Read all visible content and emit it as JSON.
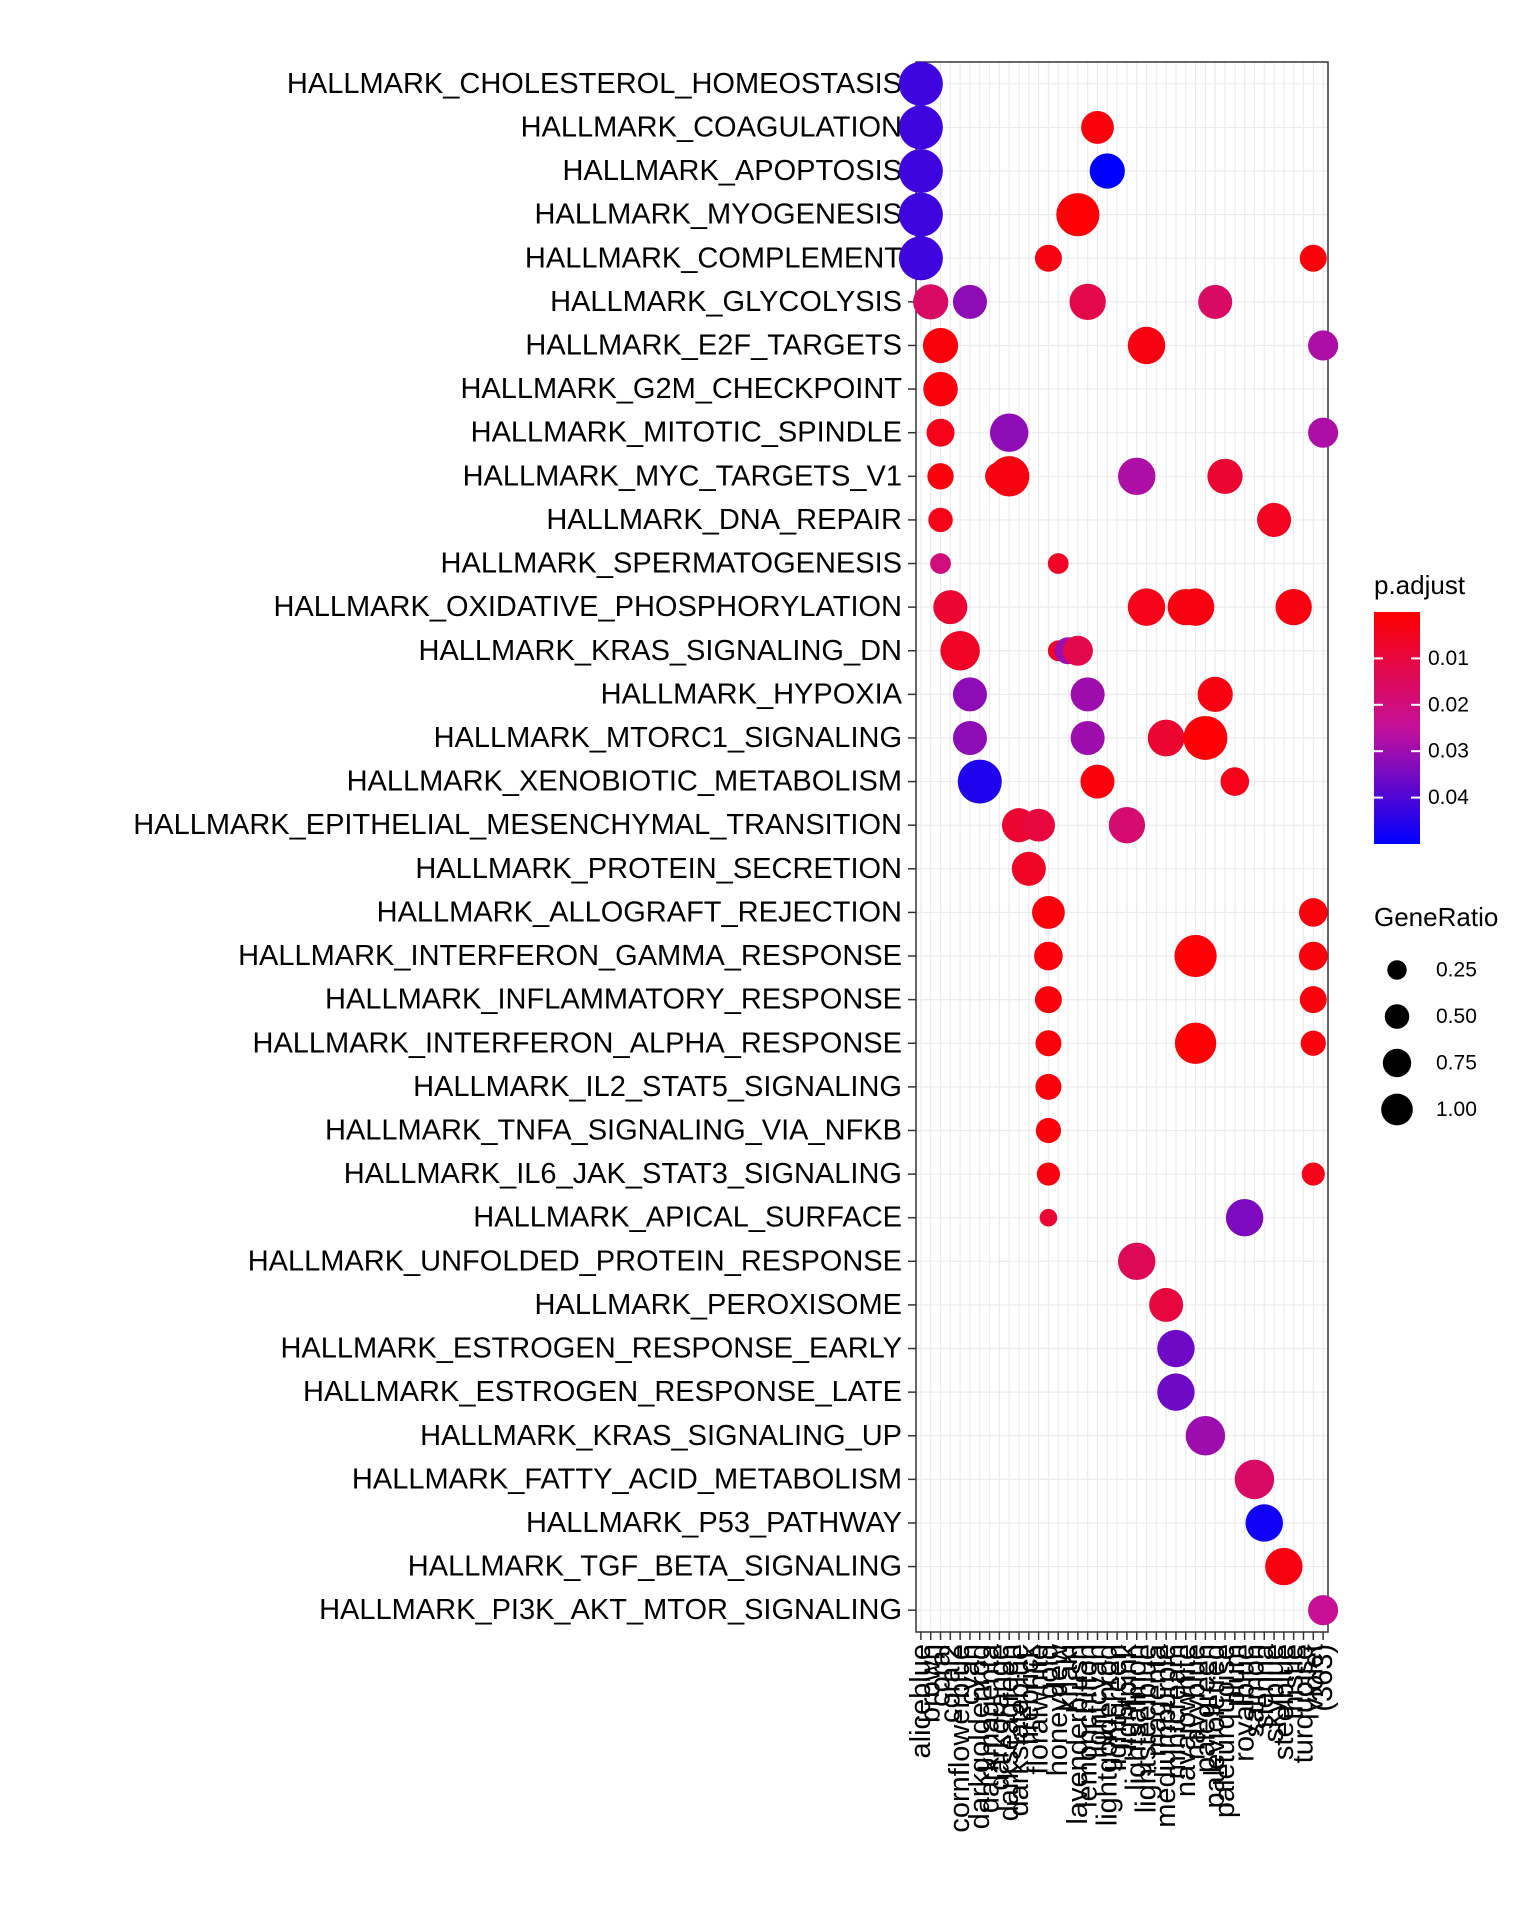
{
  "chart_data": {
    "type": "scatter",
    "title": "",
    "xlabel": "",
    "ylabel": "",
    "grid": true,
    "legend_position": "right",
    "categories_x": [
      "aliceblue",
      "brown",
      "coral",
      "coral2",
      "cornflowerblue",
      "cyan",
      "darkgoldenrod",
      "darkmagenta",
      "darkorange",
      "darkseagreen",
      "darkslateblue",
      "firebrick",
      "floralwhite",
      "gold",
      "honeydew",
      "khaki",
      "lavenderblush",
      "lemonchiffon",
      "lightcyan",
      "lightgoldenrod",
      "lightgreen",
      "lightpink",
      "lightsalmon",
      "lightsteelblue",
      "magenta",
      "mediumpurple",
      "mintcream",
      "navajowhite",
      "navyblue",
      "palegreen",
      "palevioletred",
      "paleturquoise",
      "plum",
      "royalblue",
      "salmon",
      "sienna",
      "skyblue",
      "steelblue",
      "thistle",
      "turquoise",
      "violet",
      "(363)"
    ],
    "categories_y": [
      "HALLMARK_CHOLESTEROL_HOMEOSTASIS",
      "HALLMARK_COAGULATION",
      "HALLMARK_APOPTOSIS",
      "HALLMARK_MYOGENESIS",
      "HALLMARK_COMPLEMENT",
      "HALLMARK_GLYCOLYSIS",
      "HALLMARK_E2F_TARGETS",
      "HALLMARK_G2M_CHECKPOINT",
      "HALLMARK_MITOTIC_SPINDLE",
      "HALLMARK_MYC_TARGETS_V1",
      "HALLMARK_DNA_REPAIR",
      "HALLMARK_SPERMATOGENESIS",
      "HALLMARK_OXIDATIVE_PHOSPHORYLATION",
      "HALLMARK_KRAS_SIGNALING_DN",
      "HALLMARK_HYPOXIA",
      "HALLMARK_MTORC1_SIGNALING",
      "HALLMARK_XENOBIOTIC_METABOLISM",
      "HALLMARK_EPITHELIAL_MESENCHYMAL_TRANSITION",
      "HALLMARK_PROTEIN_SECRETION",
      "HALLMARK_ALLOGRAFT_REJECTION",
      "HALLMARK_INTERFERON_GAMMA_RESPONSE",
      "HALLMARK_INFLAMMATORY_RESPONSE",
      "HALLMARK_INTERFERON_ALPHA_RESPONSE",
      "HALLMARK_IL2_STAT5_SIGNALING",
      "HALLMARK_TNFA_SIGNALING_VIA_NFKB",
      "HALLMARK_IL6_JAK_STAT3_SIGNALING",
      "HALLMARK_APICAL_SURFACE",
      "HALLMARK_UNFOLDED_PROTEIN_RESPONSE",
      "HALLMARK_PEROXISOME",
      "HALLMARK_ESTROGEN_RESPONSE_EARLY",
      "HALLMARK_ESTROGEN_RESPONSE_LATE",
      "HALLMARK_KRAS_SIGNALING_UP",
      "HALLMARK_FATTY_ACID_METABOLISM",
      "HALLMARK_P53_PATHWAY",
      "HALLMARK_TGF_BETA_SIGNALING",
      "HALLMARK_PI3K_AKT_MTOR_SIGNALING"
    ],
    "points": [
      {
        "x": "aliceblue",
        "y": "HALLMARK_CHOLESTEROL_HOMEOSTASIS",
        "ratio": 1.0,
        "padj": 0.042
      },
      {
        "x": "aliceblue",
        "y": "HALLMARK_COAGULATION",
        "ratio": 1.0,
        "padj": 0.042
      },
      {
        "x": "aliceblue",
        "y": "HALLMARK_APOPTOSIS",
        "ratio": 1.0,
        "padj": 0.042
      },
      {
        "x": "aliceblue",
        "y": "HALLMARK_MYOGENESIS",
        "ratio": 1.0,
        "padj": 0.042
      },
      {
        "x": "aliceblue",
        "y": "HALLMARK_COMPLEMENT",
        "ratio": 1.0,
        "padj": 0.042
      },
      {
        "x": "brown",
        "y": "HALLMARK_GLYCOLYSIS",
        "ratio": 0.55,
        "padj": 0.016
      },
      {
        "x": "coral",
        "y": "HALLMARK_E2F_TARGETS",
        "ratio": 0.55,
        "padj": 0.002
      },
      {
        "x": "coral",
        "y": "HALLMARK_G2M_CHECKPOINT",
        "ratio": 0.52,
        "padj": 0.002
      },
      {
        "x": "coral",
        "y": "HALLMARK_MITOTIC_SPINDLE",
        "ratio": 0.28,
        "padj": 0.004
      },
      {
        "x": "coral",
        "y": "HALLMARK_MYC_TARGETS_V1",
        "ratio": 0.23,
        "padj": 0.002
      },
      {
        "x": "coral",
        "y": "HALLMARK_DNA_REPAIR",
        "ratio": 0.18,
        "padj": 0.004
      },
      {
        "x": "coral",
        "y": "HALLMARK_SPERMATOGENESIS",
        "ratio": 0.1,
        "padj": 0.02
      },
      {
        "x": "coral2",
        "y": "HALLMARK_OXIDATIVE_PHOSPHORYLATION",
        "ratio": 0.5,
        "padj": 0.008
      },
      {
        "x": "cornflowerblue",
        "y": "HALLMARK_KRAS_SIGNALING_DN",
        "ratio": 0.75,
        "padj": 0.006
      },
      {
        "x": "cyan",
        "y": "HALLMARK_GLYCOLYSIS",
        "ratio": 0.5,
        "padj": 0.032
      },
      {
        "x": "cyan",
        "y": "HALLMARK_HYPOXIA",
        "ratio": 0.5,
        "padj": 0.032
      },
      {
        "x": "cyan",
        "y": "HALLMARK_MTORC1_SIGNALING",
        "ratio": 0.5,
        "padj": 0.032
      },
      {
        "x": "darkgoldenrod",
        "y": "HALLMARK_XENOBIOTIC_METABOLISM",
        "ratio": 1.0,
        "padj": 0.046
      },
      {
        "x": "darkorange",
        "y": "HALLMARK_MYC_TARGETS_V1",
        "ratio": 0.3,
        "padj": 0.003
      },
      {
        "x": "darkseagreen",
        "y": "HALLMARK_MITOTIC_SPINDLE",
        "ratio": 0.7,
        "padj": 0.032
      },
      {
        "x": "darkseagreen",
        "y": "HALLMARK_MYC_TARGETS_V1",
        "ratio": 0.8,
        "padj": 0.003
      },
      {
        "x": "darkslateblue",
        "y": "HALLMARK_EPITHELIAL_MESENCHYMAL_TRANSITION",
        "ratio": 0.5,
        "padj": 0.008
      },
      {
        "x": "firebrick",
        "y": "HALLMARK_PROTEIN_SECRETION",
        "ratio": 0.5,
        "padj": 0.006
      },
      {
        "x": "floralwhite",
        "y": "HALLMARK_EPITHELIAL_MESENCHYMAL_TRANSITION",
        "ratio": 0.45,
        "padj": 0.01
      },
      {
        "x": "gold",
        "y": "HALLMARK_COMPLEMENT",
        "ratio": 0.25,
        "padj": 0.003
      },
      {
        "x": "gold",
        "y": "HALLMARK_ALLOGRAFT_REJECTION",
        "ratio": 0.45,
        "padj": 0.002
      },
      {
        "x": "gold",
        "y": "HALLMARK_INTERFERON_GAMMA_RESPONSE",
        "ratio": 0.3,
        "padj": 0.002
      },
      {
        "x": "gold",
        "y": "HALLMARK_INFLAMMATORY_RESPONSE",
        "ratio": 0.25,
        "padj": 0.002
      },
      {
        "x": "gold",
        "y": "HALLMARK_INTERFERON_ALPHA_RESPONSE",
        "ratio": 0.22,
        "padj": 0.002
      },
      {
        "x": "gold",
        "y": "HALLMARK_IL2_STAT5_SIGNALING",
        "ratio": 0.22,
        "padj": 0.002
      },
      {
        "x": "gold",
        "y": "HALLMARK_TNFA_SIGNALING_VIA_NFKB",
        "ratio": 0.2,
        "padj": 0.002
      },
      {
        "x": "gold",
        "y": "HALLMARK_IL6_JAK_STAT3_SIGNALING",
        "ratio": 0.15,
        "padj": 0.003
      },
      {
        "x": "gold",
        "y": "HALLMARK_APICAL_SURFACE",
        "ratio": 0.05,
        "padj": 0.008
      },
      {
        "x": "honeydew",
        "y": "HALLMARK_SPERMATOGENESIS",
        "ratio": 0.1,
        "padj": 0.006
      },
      {
        "x": "honeydew",
        "y": "HALLMARK_KRAS_SIGNALING_DN",
        "ratio": 0.1,
        "padj": 0.006
      },
      {
        "x": "khaki",
        "y": "HALLMARK_KRAS_SIGNALING_DN",
        "ratio": 0.25,
        "padj": 0.03
      },
      {
        "x": "lavenderblush",
        "y": "HALLMARK_MYOGENESIS",
        "ratio": 0.95,
        "padj": 0.001
      },
      {
        "x": "lavenderblush",
        "y": "HALLMARK_KRAS_SIGNALING_DN",
        "ratio": 0.35,
        "padj": 0.012
      },
      {
        "x": "lemonchiffon",
        "y": "HALLMARK_GLYCOLYSIS",
        "ratio": 0.6,
        "padj": 0.012
      },
      {
        "x": "lemonchiffon",
        "y": "HALLMARK_HYPOXIA",
        "ratio": 0.5,
        "padj": 0.03
      },
      {
        "x": "lemonchiffon",
        "y": "HALLMARK_MTORC1_SIGNALING",
        "ratio": 0.5,
        "padj": 0.03
      },
      {
        "x": "lightcyan",
        "y": "HALLMARK_COAGULATION",
        "ratio": 0.45,
        "padj": 0.002
      },
      {
        "x": "lightcyan",
        "y": "HALLMARK_XENOBIOTIC_METABOLISM",
        "ratio": 0.5,
        "padj": 0.002
      },
      {
        "x": "lightgoldenrod",
        "y": "HALLMARK_APOPTOSIS",
        "ratio": 0.55,
        "padj": 0.05
      },
      {
        "x": "lightpink",
        "y": "HALLMARK_EPITHELIAL_MESENCHYMAL_TRANSITION",
        "ratio": 0.6,
        "padj": 0.018
      },
      {
        "x": "lightsalmon",
        "y": "HALLMARK_MYC_TARGETS_V1",
        "ratio": 0.65,
        "padj": 0.028
      },
      {
        "x": "lightsalmon",
        "y": "HALLMARK_UNFOLDED_PROTEIN_RESPONSE",
        "ratio": 0.65,
        "padj": 0.014
      },
      {
        "x": "lightsteelblue",
        "y": "HALLMARK_OXIDATIVE_PHOSPHORYLATION",
        "ratio": 0.65,
        "padj": 0.004
      },
      {
        "x": "lightsteelblue",
        "y": "HALLMARK_E2F_TARGETS",
        "ratio": 0.65,
        "padj": 0.003
      },
      {
        "x": "mediumpurple",
        "y": "HALLMARK_MTORC1_SIGNALING",
        "ratio": 0.62,
        "padj": 0.008
      },
      {
        "x": "mediumpurple",
        "y": "HALLMARK_PEROXISOME",
        "ratio": 0.5,
        "padj": 0.01
      },
      {
        "x": "mintcream",
        "y": "HALLMARK_ESTROGEN_RESPONSE_EARLY",
        "ratio": 0.65,
        "padj": 0.036
      },
      {
        "x": "mintcream",
        "y": "HALLMARK_ESTROGEN_RESPONSE_LATE",
        "ratio": 0.65,
        "padj": 0.036
      },
      {
        "x": "navajowhite",
        "y": "HALLMARK_OXIDATIVE_PHOSPHORYLATION",
        "ratio": 0.6,
        "padj": 0.003
      },
      {
        "x": "navyblue",
        "y": "HALLMARK_OXIDATIVE_PHOSPHORYLATION",
        "ratio": 0.65,
        "padj": 0.003
      },
      {
        "x": "navyblue",
        "y": "HALLMARK_INTERFERON_GAMMA_RESPONSE",
        "ratio": 0.9,
        "padj": 0.001
      },
      {
        "x": "navyblue",
        "y": "HALLMARK_INTERFERON_ALPHA_RESPONSE",
        "ratio": 0.85,
        "padj": 0.001
      },
      {
        "x": "palegreen",
        "y": "HALLMARK_MTORC1_SIGNALING",
        "ratio": 1.0,
        "padj": 0.001
      },
      {
        "x": "palegreen",
        "y": "HALLMARK_KRAS_SIGNALING_UP",
        "ratio": 0.75,
        "padj": 0.03
      },
      {
        "x": "palevioletred",
        "y": "HALLMARK_GLYCOLYSIS",
        "ratio": 0.5,
        "padj": 0.016
      },
      {
        "x": "palevioletred",
        "y": "HALLMARK_HYPOXIA",
        "ratio": 0.55,
        "padj": 0.003
      },
      {
        "x": "paleturquoise",
        "y": "HALLMARK_MYC_TARGETS_V1",
        "ratio": 0.55,
        "padj": 0.008
      },
      {
        "x": "plum",
        "y": "HALLMARK_XENOBIOTIC_METABOLISM",
        "ratio": 0.3,
        "padj": 0.004
      },
      {
        "x": "royalblue",
        "y": "HALLMARK_APICAL_SURFACE",
        "ratio": 0.65,
        "padj": 0.034
      },
      {
        "x": "salmon",
        "y": "HALLMARK_FATTY_ACID_METABOLISM",
        "ratio": 0.75,
        "padj": 0.016
      },
      {
        "x": "sienna",
        "y": "HALLMARK_P53_PATHWAY",
        "ratio": 0.65,
        "padj": 0.048
      },
      {
        "x": "skyblue",
        "y": "HALLMARK_DNA_REPAIR",
        "ratio": 0.5,
        "padj": 0.005
      },
      {
        "x": "steelblue",
        "y": "HALLMARK_TGF_BETA_SIGNALING",
        "ratio": 0.65,
        "padj": 0.003
      },
      {
        "x": "thistle",
        "y": "HALLMARK_OXIDATIVE_PHOSPHORYLATION",
        "ratio": 0.6,
        "padj": 0.003
      },
      {
        "x": "violet",
        "y": "HALLMARK_COMPLEMENT",
        "ratio": 0.25,
        "padj": 0.002
      },
      {
        "x": "violet",
        "y": "HALLMARK_ALLOGRAFT_REJECTION",
        "ratio": 0.3,
        "padj": 0.002
      },
      {
        "x": "violet",
        "y": "HALLMARK_INTERFERON_GAMMA_RESPONSE",
        "ratio": 0.3,
        "padj": 0.002
      },
      {
        "x": "violet",
        "y": "HALLMARK_INFLAMMATORY_RESPONSE",
        "ratio": 0.25,
        "padj": 0.002
      },
      {
        "x": "violet",
        "y": "HALLMARK_INTERFERON_ALPHA_RESPONSE",
        "ratio": 0.2,
        "padj": 0.002
      },
      {
        "x": "violet",
        "y": "HALLMARK_IL6_JAK_STAT3_SIGNALING",
        "ratio": 0.15,
        "padj": 0.004
      },
      {
        "x": "(363)",
        "y": "HALLMARK_E2F_TARGETS",
        "ratio": 0.35,
        "padj": 0.028
      },
      {
        "x": "(363)",
        "y": "HALLMARK_MITOTIC_SPINDLE",
        "ratio": 0.35,
        "padj": 0.028
      },
      {
        "x": "(363)",
        "y": "HALLMARK_PI3K_AKT_MTOR_SIGNALING",
        "ratio": 0.35,
        "padj": 0.024
      }
    ],
    "color_legend": {
      "title": "p.adjust",
      "range": [
        0.0,
        0.05
      ],
      "ticks": [
        0.01,
        0.02,
        0.03,
        0.04
      ],
      "tick_labels": [
        "0.01",
        "0.02",
        "0.03",
        "0.04"
      ],
      "low_color": "#ff0000",
      "high_color": "#0000ff"
    },
    "size_legend": {
      "title": "GeneRatio",
      "values": [
        0.25,
        0.5,
        0.75,
        1.0
      ],
      "labels": [
        "0.25",
        "0.50",
        "0.75",
        "1.00"
      ]
    }
  }
}
